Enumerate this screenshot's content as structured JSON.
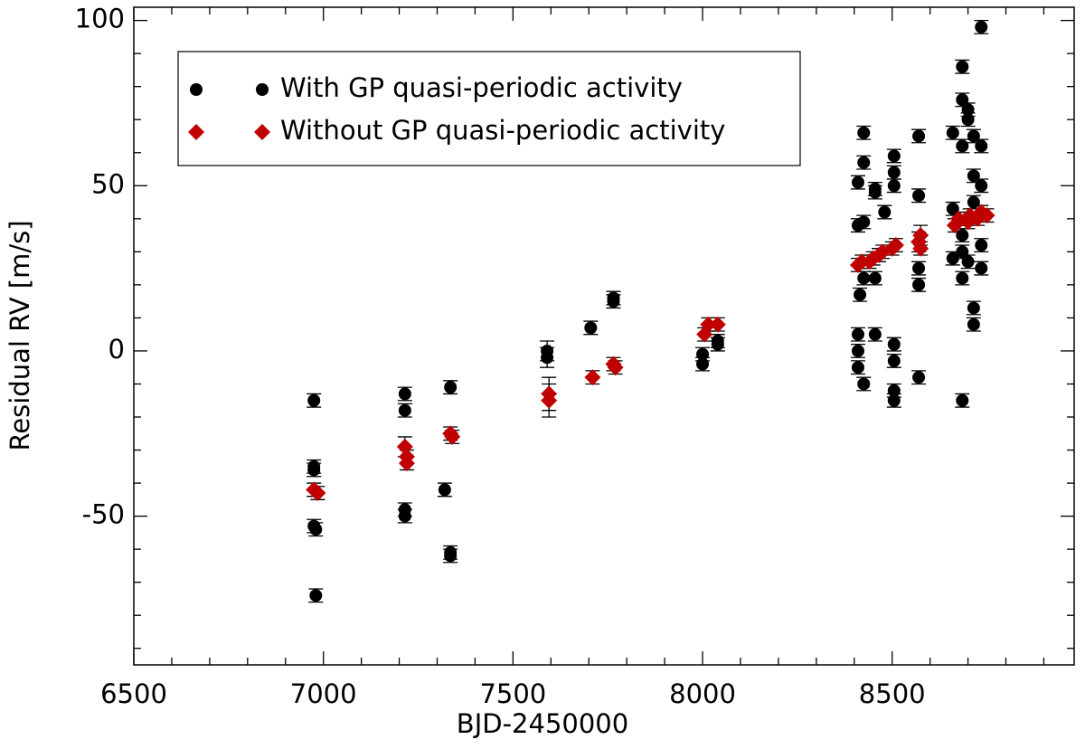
{
  "chart_data": {
    "type": "scatter",
    "xlabel": "BJD-2450000",
    "ylabel": "Residual RV [m/s]",
    "xlim": [
      6500,
      8980
    ],
    "ylim": [
      -95,
      104
    ],
    "xticks": [
      6500,
      7000,
      7500,
      8000,
      8500
    ],
    "yticks": [
      -50,
      0,
      50,
      100
    ],
    "xticks_minor": [
      6600,
      6700,
      6800,
      6900,
      7100,
      7200,
      7300,
      7400,
      7600,
      7700,
      7800,
      7900,
      8100,
      8200,
      8300,
      8400,
      8600,
      8700,
      8800,
      8900
    ],
    "yticks_minor": [
      -90,
      -80,
      -70,
      -60,
      -40,
      -30,
      -20,
      -10,
      10,
      20,
      30,
      40,
      60,
      70,
      80,
      90
    ],
    "legend": "upper left",
    "series": [
      {
        "name": "With GP quasi-periodic activity",
        "color": "#000000",
        "marker": "circle",
        "x": [
          6975,
          6975,
          6975,
          6975,
          6980,
          6980,
          7215,
          7215,
          7215,
          7215,
          7335,
          7320,
          7335,
          7335,
          7590,
          7590,
          7705,
          7765,
          7765,
          8000,
          8000,
          8040,
          8040,
          8410,
          8410,
          8415,
          8410,
          8410,
          8410,
          8425,
          8425,
          8425,
          8425,
          8425,
          8455,
          8455,
          8455,
          8455,
          8480,
          8505,
          8505,
          8505,
          8505,
          8505,
          8505,
          8505,
          8570,
          8570,
          8570,
          8570,
          8570,
          8660,
          8660,
          8660,
          8685,
          8685,
          8685,
          8685,
          8685,
          8685,
          8685,
          8700,
          8700,
          8700,
          8700,
          8715,
          8715,
          8715,
          8715,
          8715,
          8735,
          8735,
          8735,
          8735,
          8735
        ],
        "values": [
          -15,
          -35,
          -36,
          -53,
          -54,
          -74,
          -13,
          -18,
          -48,
          -50,
          -11,
          -42,
          -61,
          -62,
          0,
          -2,
          7,
          15,
          16,
          -1,
          -4,
          2,
          3,
          38,
          51,
          17,
          5,
          0,
          -5,
          66,
          57,
          39,
          22,
          -10,
          48,
          49,
          22,
          5,
          42,
          59,
          54,
          50,
          2,
          -3,
          -12,
          -15,
          65,
          47,
          25,
          20,
          -8,
          66,
          43,
          28,
          86,
          76,
          62,
          35,
          30,
          22,
          -15,
          73,
          70,
          40,
          27,
          65,
          53,
          45,
          13,
          8,
          98,
          62,
          50,
          32,
          25
        ],
        "errors": [
          2,
          2,
          2,
          2,
          2,
          2,
          2,
          2,
          2,
          2,
          2,
          2,
          2,
          2,
          3,
          3,
          2,
          2,
          2,
          2,
          2,
          2,
          2,
          2,
          2,
          2,
          2,
          2,
          2,
          2,
          2,
          2,
          2,
          2,
          2,
          2,
          2,
          2,
          2,
          2,
          2,
          2,
          2,
          2,
          2,
          2,
          2,
          2,
          2,
          2,
          2,
          2,
          2,
          2,
          2,
          2,
          2,
          2,
          2,
          2,
          2,
          2,
          2,
          2,
          2,
          2,
          2,
          2,
          2,
          2,
          2,
          2,
          2,
          2,
          2
        ]
      },
      {
        "name": "Without GP quasi-periodic activity",
        "color": "#c00000",
        "marker": "diamond",
        "x": [
          6975,
          6985,
          7215,
          7220,
          7220,
          7335,
          7340,
          7595,
          7595,
          7710,
          7765,
          7770,
          8005,
          8015,
          8040,
          8410,
          8420,
          8440,
          8450,
          8465,
          8475,
          8500,
          8510,
          8570,
          8575,
          8575,
          8665,
          8675,
          8700,
          8705,
          8725,
          8735,
          8750
        ],
        "values": [
          -42,
          -43,
          -29,
          -32,
          -34,
          -25,
          -26,
          -13,
          -15,
          -8,
          -4,
          -5,
          5,
          8,
          8,
          26,
          27,
          27,
          28,
          29,
          30,
          31,
          32,
          33,
          35,
          31,
          38,
          40,
          39,
          41,
          40,
          42,
          41
        ],
        "errors": [
          2,
          2,
          3,
          2,
          2,
          2,
          2,
          5,
          5,
          2,
          2,
          2,
          2,
          2,
          2,
          2,
          2,
          2,
          2,
          2,
          2,
          2,
          2,
          3,
          3,
          2,
          2,
          2,
          2,
          2,
          2,
          2,
          2
        ]
      }
    ]
  }
}
